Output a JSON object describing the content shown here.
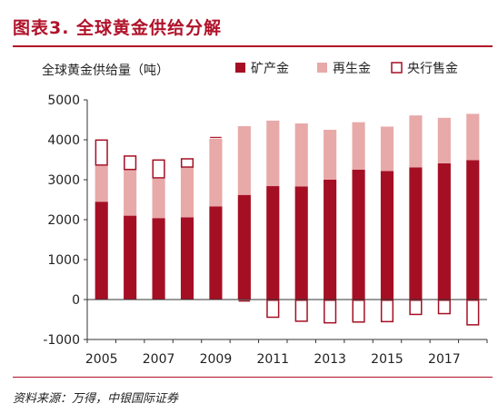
{
  "figure": {
    "title": "图表3. 全球黄金供给分解",
    "source": "资料来源：万得，中银国际证券"
  },
  "colors": {
    "accent": "#b0122a",
    "mine": "#a50f24",
    "recycle": "#e8a9a9",
    "central": "#a50f24"
  },
  "chart_data": {
    "type": "bar",
    "stacked": true,
    "title": "",
    "ylabel": "全球黄金供给量（吨）",
    "xlabel": "",
    "ylim": [
      -1000,
      5000
    ],
    "yticks": [
      -1000,
      0,
      1000,
      2000,
      3000,
      4000,
      5000
    ],
    "categories": [
      "2005",
      "2006",
      "2007",
      "2008",
      "2009",
      "2010",
      "2011",
      "2012",
      "2013",
      "2014",
      "2015",
      "2016",
      "2017",
      "2018"
    ],
    "xtick_labels": [
      "2005",
      "",
      "2007",
      "",
      "2009",
      "",
      "2011",
      "",
      "2013",
      "",
      "2015",
      "",
      "2017",
      ""
    ],
    "legend_position": "top",
    "series": [
      {
        "name": "矿产金",
        "values": [
          2450,
          2100,
          2040,
          2060,
          2330,
          2620,
          2840,
          2830,
          3000,
          3250,
          3220,
          3310,
          3410,
          3490
        ]
      },
      {
        "name": "再生金",
        "values": [
          900,
          1140,
          990,
          1240,
          1700,
          1720,
          1640,
          1580,
          1250,
          1190,
          1110,
          1300,
          1140,
          1160
        ]
      },
      {
        "name": "央行售金",
        "values": [
          660,
          370,
          480,
          240,
          60,
          -70,
          -460,
          -560,
          -600,
          -580,
          -570,
          -390,
          -370,
          -650
        ]
      }
    ]
  }
}
